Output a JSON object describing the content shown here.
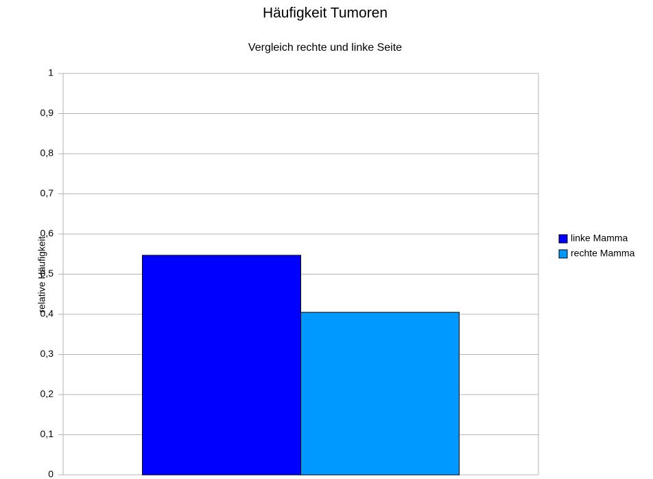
{
  "chart_data": {
    "type": "bar",
    "title": "Häufigkeit Tumoren",
    "subtitle": "Vergleich rechte  und linke Seite",
    "y_label": "relative Häufigkeit",
    "categories": [
      null
    ],
    "series": [
      {
        "name": "linke Mamma",
        "color": "#0000ff",
        "values": [
          0.547
        ]
      },
      {
        "name": "rechte Mamma",
        "color": "#0099ff",
        "values": [
          0.405
        ]
      }
    ],
    "ylim": [
      0,
      1
    ],
    "yticks": [
      0,
      {
        "value": 0.1,
        "label": "0,1"
      },
      {
        "value": 0.2,
        "label": "0,2"
      },
      {
        "value": 0.3,
        "label": "0,3"
      },
      {
        "value": 0.4,
        "label": "0,4"
      },
      {
        "value": 0.5,
        "label": "0,5"
      },
      {
        "value": 0.6,
        "label": "0,6"
      },
      {
        "value": 0.7,
        "label": "0,7"
      },
      {
        "value": 0.8,
        "label": "0,8"
      },
      {
        "value": 0.9,
        "label": "0,9"
      },
      1
    ],
    "grid": true,
    "legend": "right"
  }
}
